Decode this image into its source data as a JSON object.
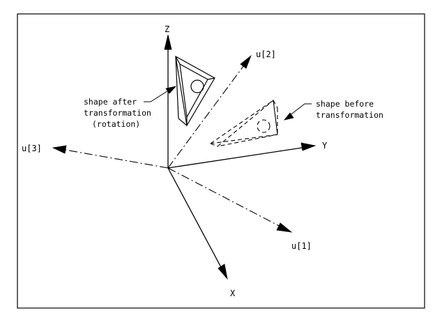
{
  "axes": {
    "z": "Z",
    "y": "Y",
    "x": "X",
    "u1": "u[1]",
    "u2": "u[2]",
    "u3": "u[3]"
  },
  "annotations": {
    "after": [
      "shape after",
      "transformation",
      "(rotation)"
    ],
    "before": [
      "shape before",
      "transformation"
    ]
  }
}
